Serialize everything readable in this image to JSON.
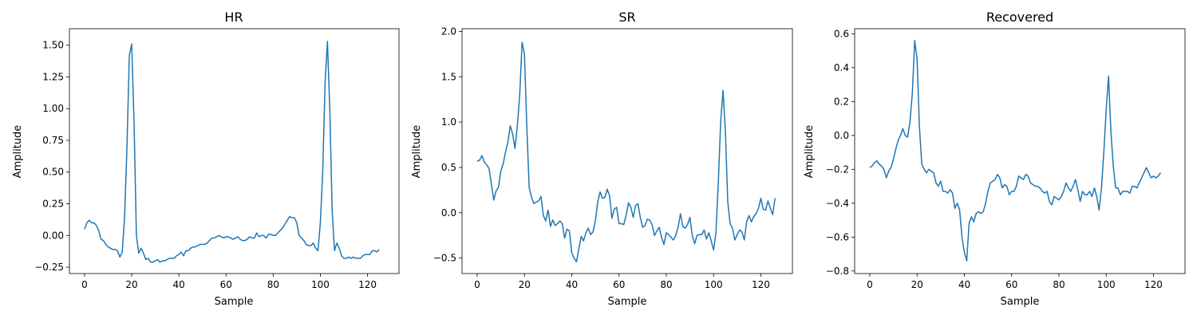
{
  "colors": {
    "line": "#1f77b4",
    "axes": "#000000",
    "background": "#ffffff"
  },
  "chart_data": [
    {
      "type": "line",
      "title": "HR",
      "xlabel": "Sample",
      "ylabel": "Amplitude",
      "xlim": [
        -6.4,
        133.35
      ],
      "ylim": [
        -0.3,
        1.63
      ],
      "xticks": [
        0,
        20,
        40,
        60,
        80,
        100,
        120
      ],
      "yticks": [
        -0.25,
        0.0,
        0.25,
        0.5,
        0.75,
        1.0,
        1.25,
        1.5
      ],
      "ytick_labels": [
        "−0.25",
        "0.00",
        "0.25",
        "0.50",
        "0.75",
        "1.00",
        "1.25",
        "1.50"
      ],
      "grid": false,
      "y": [
        0.05,
        0.1,
        0.12,
        0.1,
        0.1,
        0.08,
        0.04,
        -0.03,
        -0.04,
        -0.07,
        -0.09,
        -0.1,
        -0.11,
        -0.11,
        -0.12,
        -0.17,
        -0.13,
        0.15,
        0.7,
        1.42,
        1.51,
        0.9,
        0.0,
        -0.14,
        -0.1,
        -0.14,
        -0.19,
        -0.18,
        -0.21,
        -0.21,
        -0.2,
        -0.19,
        -0.21,
        -0.2,
        -0.2,
        -0.19,
        -0.18,
        -0.18,
        -0.18,
        -0.16,
        -0.15,
        -0.13,
        -0.16,
        -0.12,
        -0.12,
        -0.1,
        -0.09,
        -0.09,
        -0.08,
        -0.07,
        -0.07,
        -0.07,
        -0.06,
        -0.04,
        -0.02,
        -0.02,
        -0.01,
        0.0,
        -0.01,
        -0.02,
        -0.01,
        -0.01,
        -0.02,
        -0.03,
        -0.02,
        -0.01,
        -0.03,
        -0.04,
        -0.04,
        -0.03,
        -0.01,
        -0.02,
        -0.02,
        0.02,
        -0.01,
        0.0,
        0.0,
        -0.02,
        0.01,
        0.01,
        0.0,
        0.0,
        0.02,
        0.04,
        0.06,
        0.09,
        0.12,
        0.15,
        0.14,
        0.14,
        0.1,
        0.0,
        -0.02,
        -0.04,
        -0.07,
        -0.08,
        -0.08,
        -0.06,
        -0.1,
        -0.12,
        0.1,
        0.5,
        1.2,
        1.53,
        1.0,
        0.2,
        -0.12,
        -0.06,
        -0.1,
        -0.16,
        -0.18,
        -0.18,
        -0.17,
        -0.18,
        -0.17,
        -0.18,
        -0.18,
        -0.18,
        -0.16,
        -0.15,
        -0.15,
        -0.15,
        -0.12,
        -0.12,
        -0.13,
        -0.11
      ]
    },
    {
      "type": "line",
      "title": "SR",
      "xlabel": "Sample",
      "ylabel": "Amplitude",
      "xlim": [
        -6.4,
        133.35
      ],
      "ylim": [
        -0.67,
        2.03
      ],
      "xticks": [
        0,
        20,
        40,
        60,
        80,
        100,
        120
      ],
      "yticks": [
        -0.5,
        0.0,
        0.5,
        1.0,
        1.5,
        2.0
      ],
      "ytick_labels": [
        "−0.5",
        "0.0",
        "0.5",
        "1.0",
        "1.5",
        "2.0"
      ],
      "grid": false,
      "y": [
        0.57,
        0.58,
        0.63,
        0.56,
        0.53,
        0.49,
        0.32,
        0.14,
        0.24,
        0.28,
        0.46,
        0.54,
        0.67,
        0.78,
        0.96,
        0.87,
        0.71,
        0.96,
        1.3,
        1.88,
        1.75,
        0.95,
        0.28,
        0.17,
        0.1,
        0.12,
        0.13,
        0.18,
        -0.03,
        -0.09,
        0.03,
        -0.15,
        -0.08,
        -0.14,
        -0.12,
        -0.09,
        -0.12,
        -0.28,
        -0.18,
        -0.2,
        -0.44,
        -0.5,
        -0.54,
        -0.4,
        -0.26,
        -0.31,
        -0.22,
        -0.17,
        -0.24,
        -0.21,
        -0.09,
        0.12,
        0.23,
        0.16,
        0.17,
        0.26,
        0.19,
        -0.06,
        0.04,
        0.06,
        -0.12,
        -0.12,
        -0.13,
        -0.03,
        0.11,
        0.06,
        -0.05,
        0.08,
        0.1,
        -0.05,
        -0.16,
        -0.14,
        -0.07,
        -0.08,
        -0.13,
        -0.25,
        -0.2,
        -0.16,
        -0.27,
        -0.35,
        -0.22,
        -0.24,
        -0.27,
        -0.3,
        -0.25,
        -0.16,
        -0.01,
        -0.15,
        -0.17,
        -0.13,
        -0.05,
        -0.25,
        -0.34,
        -0.25,
        -0.24,
        -0.24,
        -0.19,
        -0.29,
        -0.22,
        -0.31,
        -0.41,
        -0.22,
        0.33,
        1.0,
        1.35,
        0.9,
        0.12,
        -0.12,
        -0.17,
        -0.3,
        -0.24,
        -0.19,
        -0.21,
        -0.3,
        -0.1,
        -0.03,
        -0.1,
        -0.04,
        -0.01,
        0.05,
        0.16,
        0.04,
        0.03,
        0.13,
        0.05,
        -0.02,
        0.16
      ]
    },
    {
      "type": "line",
      "title": "Recovered",
      "xlabel": "Sample",
      "ylabel": "Amplitude",
      "xlim": [
        -6.4,
        133.35
      ],
      "ylim": [
        -0.815,
        0.63
      ],
      "xticks": [
        0,
        20,
        40,
        60,
        80,
        100,
        120
      ],
      "yticks": [
        -0.8,
        -0.6,
        -0.4,
        -0.2,
        0.0,
        0.2,
        0.4,
        0.6
      ],
      "ytick_labels": [
        "−0.8",
        "−0.6",
        "−0.4",
        "−0.2",
        "0.0",
        "0.2",
        "0.4",
        "0.6"
      ],
      "grid": false,
      "y": [
        -0.19,
        -0.18,
        -0.16,
        -0.15,
        -0.17,
        -0.18,
        -0.2,
        -0.25,
        -0.21,
        -0.19,
        -0.14,
        -0.08,
        -0.03,
        0.0,
        0.04,
        0.0,
        -0.01,
        0.08,
        0.25,
        0.56,
        0.45,
        0.05,
        -0.17,
        -0.2,
        -0.22,
        -0.2,
        -0.21,
        -0.22,
        -0.28,
        -0.3,
        -0.27,
        -0.33,
        -0.33,
        -0.34,
        -0.32,
        -0.34,
        -0.43,
        -0.4,
        -0.44,
        -0.6,
        -0.69,
        -0.74,
        -0.52,
        -0.48,
        -0.51,
        -0.46,
        -0.45,
        -0.46,
        -0.45,
        -0.4,
        -0.33,
        -0.28,
        -0.27,
        -0.26,
        -0.23,
        -0.25,
        -0.31,
        -0.29,
        -0.3,
        -0.35,
        -0.33,
        -0.33,
        -0.3,
        -0.24,
        -0.25,
        -0.26,
        -0.23,
        -0.24,
        -0.28,
        -0.29,
        -0.3,
        -0.3,
        -0.31,
        -0.33,
        -0.34,
        -0.33,
        -0.39,
        -0.41,
        -0.36,
        -0.37,
        -0.38,
        -0.36,
        -0.33,
        -0.28,
        -0.31,
        -0.33,
        -0.3,
        -0.26,
        -0.32,
        -0.39,
        -0.33,
        -0.35,
        -0.35,
        -0.33,
        -0.36,
        -0.31,
        -0.36,
        -0.44,
        -0.31,
        -0.1,
        0.15,
        0.35,
        0.02,
        -0.18,
        -0.31,
        -0.31,
        -0.35,
        -0.33,
        -0.33,
        -0.33,
        -0.34,
        -0.3,
        -0.3,
        -0.31,
        -0.28,
        -0.25,
        -0.22,
        -0.19,
        -0.22,
        -0.25,
        -0.24,
        -0.25,
        -0.24,
        -0.22
      ]
    }
  ]
}
